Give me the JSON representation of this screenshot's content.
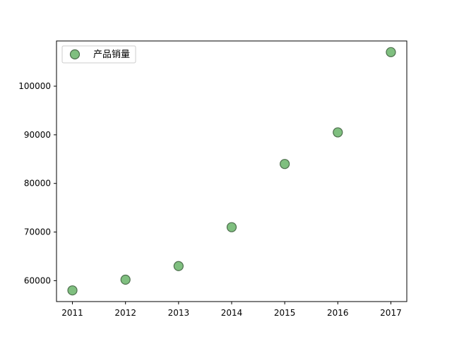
{
  "chart_data": {
    "type": "scatter",
    "title": "",
    "xlabel": "",
    "ylabel": "",
    "series": [
      {
        "name": "产品销量",
        "x": [
          2011,
          2012,
          2013,
          2014,
          2015,
          2016,
          2017
        ],
        "y": [
          58000,
          60200,
          63000,
          71000,
          84000,
          90500,
          107000
        ],
        "color": "#7fbf7f",
        "edge_color": "#4d6e4d"
      }
    ],
    "xlim": [
      2010.7,
      2017.3
    ],
    "ylim": [
      55700,
      109300
    ],
    "xticks": [
      2011,
      2012,
      2013,
      2014,
      2015,
      2016,
      2017
    ],
    "xtick_labels": [
      "2011",
      "2012",
      "2013",
      "2014",
      "2015",
      "2016",
      "2017"
    ],
    "yticks": [
      60000,
      70000,
      80000,
      90000,
      100000
    ],
    "ytick_labels": [
      "60000",
      "70000",
      "80000",
      "90000",
      "100000"
    ],
    "grid": false,
    "legend_position": "top-left"
  }
}
